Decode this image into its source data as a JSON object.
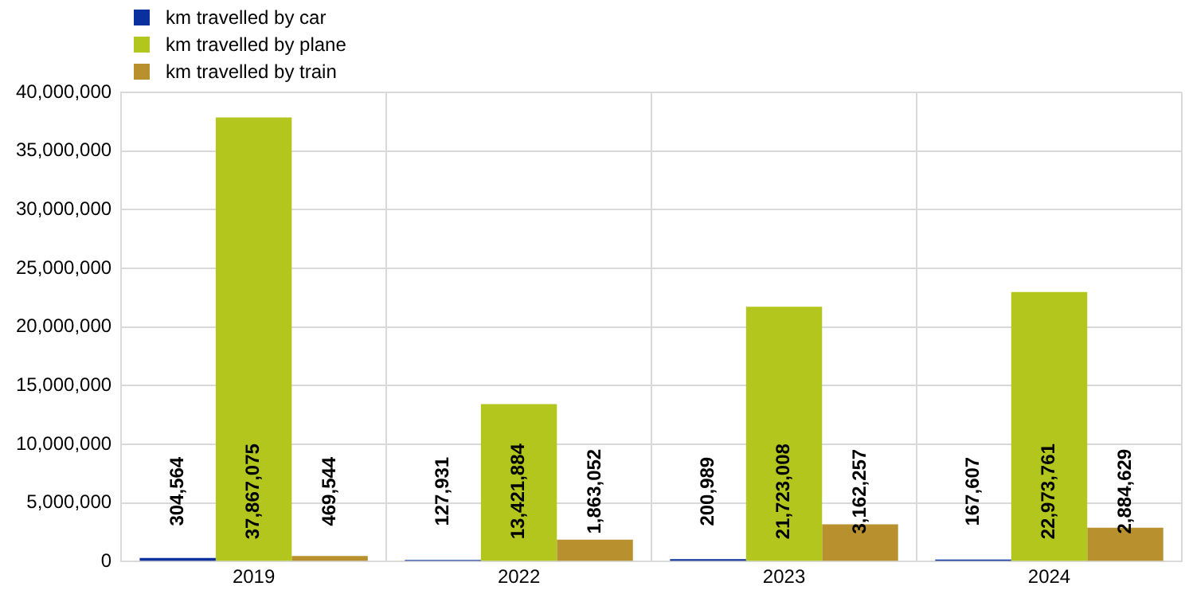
{
  "chart_data": {
    "type": "bar",
    "categories": [
      "2019",
      "2022",
      "2023",
      "2024"
    ],
    "series": [
      {
        "name": "km travelled by car",
        "color": "#0a2f9e",
        "values": [
          304564,
          127931,
          200989,
          167607
        ],
        "value_labels": [
          "304,564",
          "127,931",
          "200,989",
          "167,607"
        ]
      },
      {
        "name": "km travelled by plane",
        "color": "#b3c61e",
        "values": [
          37867075,
          13421884,
          21723008,
          22973761
        ],
        "value_labels": [
          "37,867,075",
          "13,421,884",
          "21,723,008",
          "22,973,761"
        ]
      },
      {
        "name": "km travelled by train",
        "color": "#b8912e",
        "values": [
          469544,
          1863052,
          3162257,
          2884629
        ],
        "value_labels": [
          "469,544",
          "1,863,052",
          "3,162,257",
          "2,884,629"
        ]
      }
    ],
    "ylim": [
      0,
      40000000
    ],
    "yticks": [
      0,
      {
        "value": 5000000,
        "label": "5,000,000"
      },
      {
        "value": 10000000,
        "label": "10,000,000"
      },
      {
        "value": 15000000,
        "label": "15,000,000"
      },
      {
        "value": 20000000,
        "label": "20,000,000"
      },
      {
        "value": 25000000,
        "label": "25,000,000"
      },
      {
        "value": 30000000,
        "label": "30,000,000"
      },
      {
        "value": 35000000,
        "label": "35,000,000"
      },
      {
        "value": 40000000,
        "label": "40,000,000"
      }
    ],
    "grid": true,
    "legend": "top left"
  }
}
